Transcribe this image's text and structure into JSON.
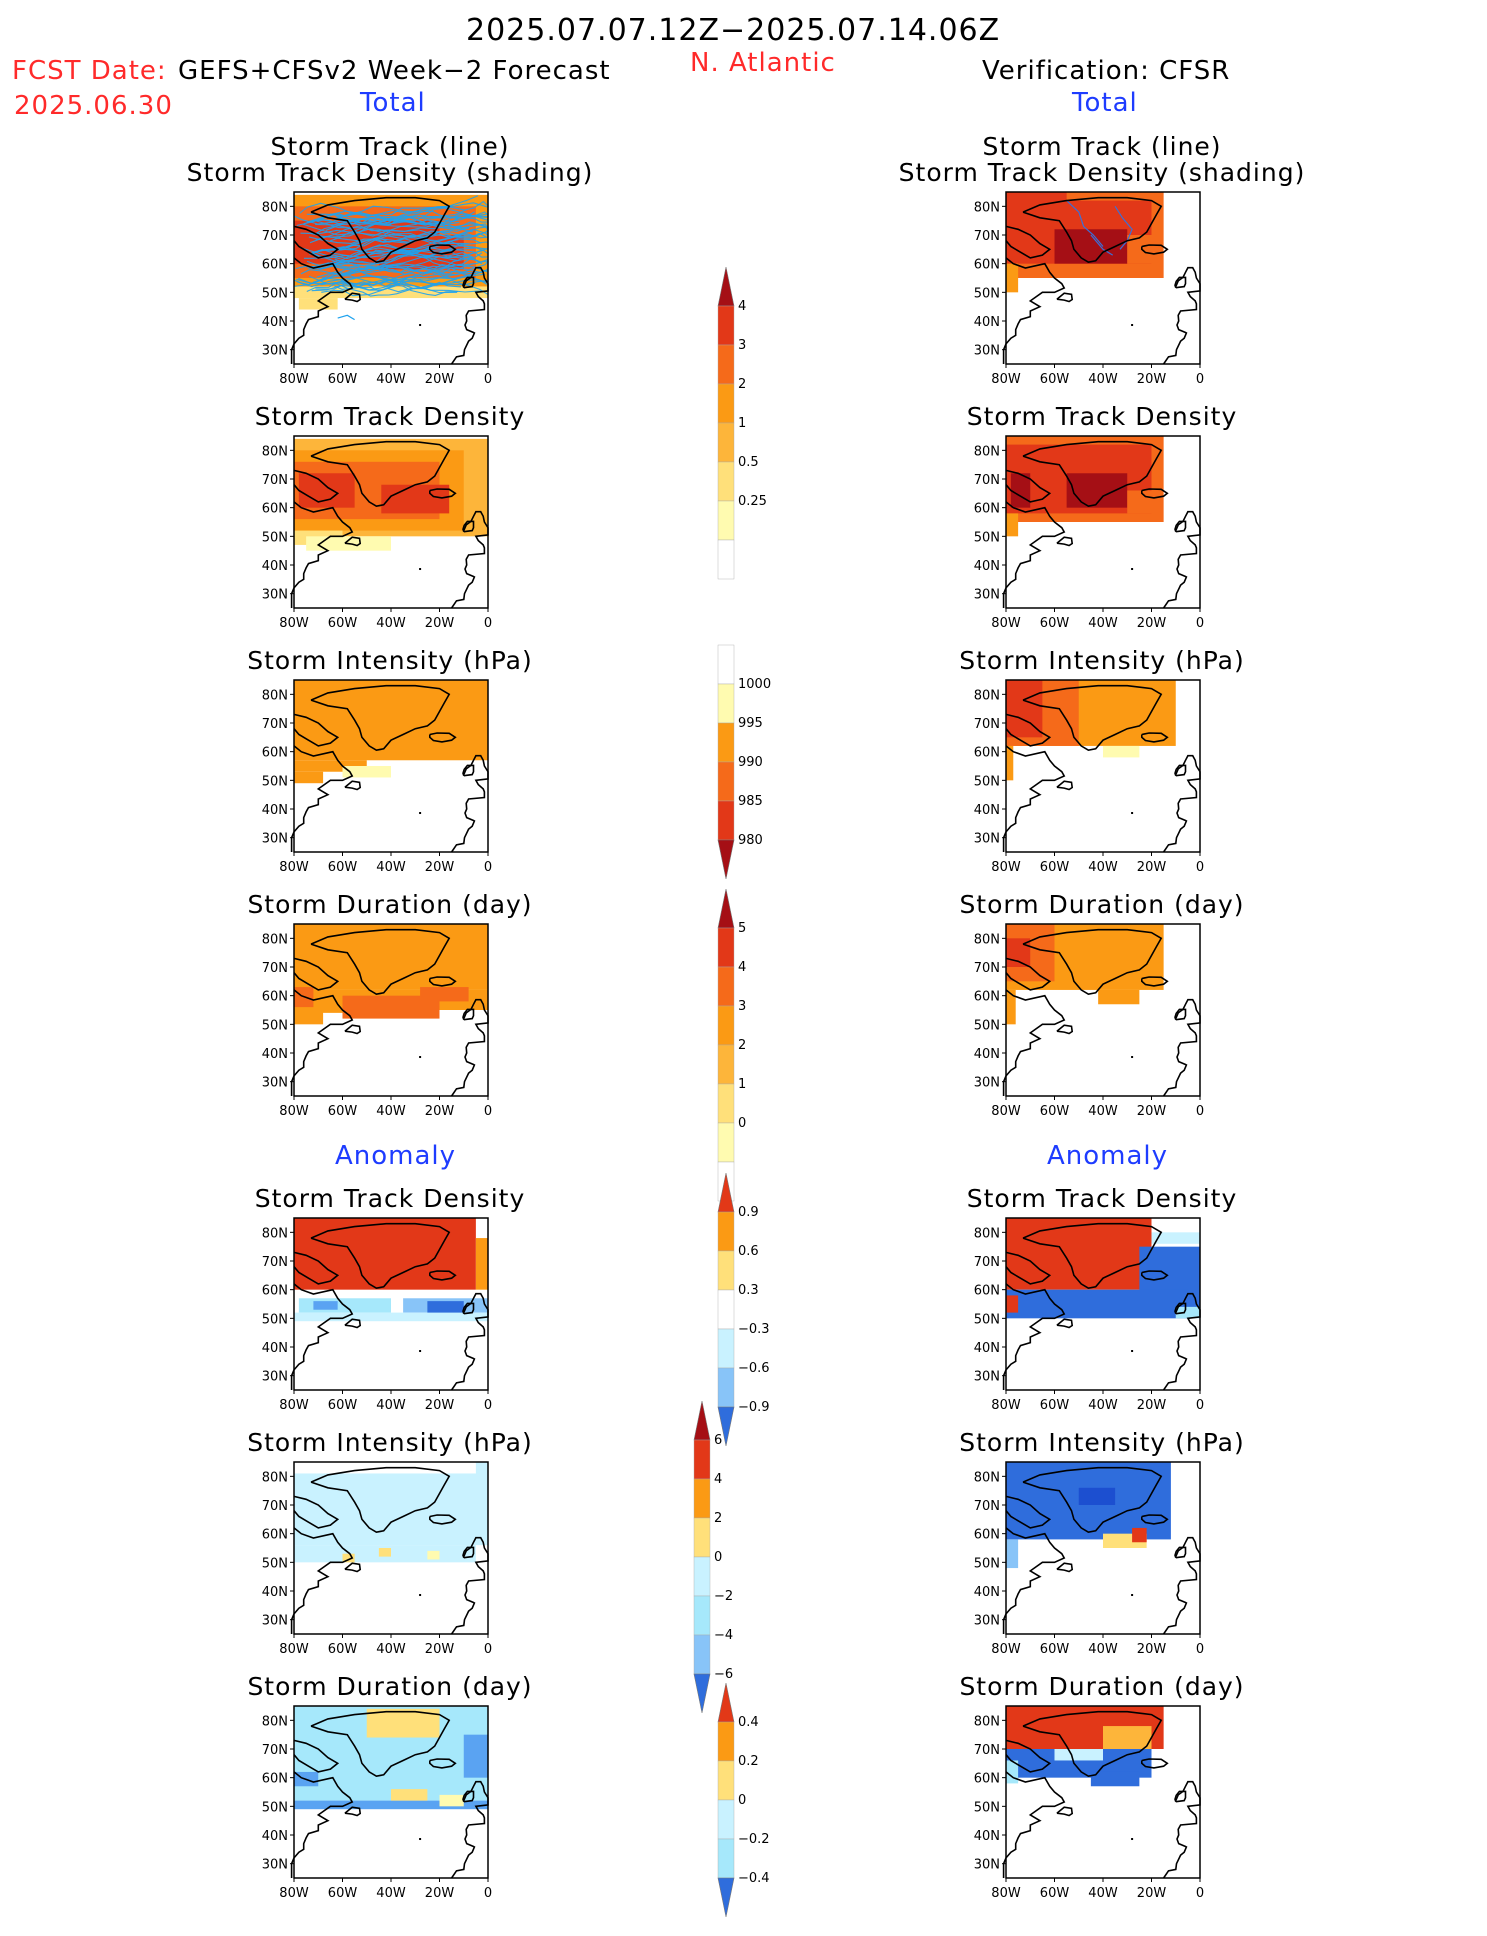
{
  "header": {
    "title": "2025.07.07.12Z−2025.07.14.06Z",
    "fcst_label": "FCST Date:",
    "fcst_model": "GEFS+CFSv2 Week−2 Forecast",
    "fcst_date": "2025.06.30",
    "region": "N. Atlantic",
    "verification": "Verification: CFSR",
    "left_total": "Total",
    "right_total": "Total",
    "left_anomaly": "Anomaly",
    "right_anomaly": "Anomaly"
  },
  "panel_titles": {
    "track_line": "Storm Track (line)",
    "track_density_shading": "Storm Track Density (shading)",
    "track_density": "Storm Track Density",
    "intensity": "Storm Intensity (hPa)",
    "duration": "Storm Duration (day)"
  },
  "axis": {
    "lat_labels": [
      "80N",
      "70N",
      "60N",
      "50N",
      "40N",
      "30N"
    ],
    "lon_labels": [
      "80W",
      "60W",
      "40W",
      "20W",
      "0"
    ]
  },
  "colorbars": {
    "total_density": [
      "4",
      "3",
      "2",
      "1",
      "0.5",
      "0.25"
    ],
    "total_intensity": [
      "1000",
      "995",
      "990",
      "985",
      "980"
    ],
    "total_duration": [
      "5",
      "4",
      "3",
      "2",
      "1",
      "0"
    ],
    "anom_density": [
      "0.9",
      "0.6",
      "0.3",
      "−0.3",
      "−0.6",
      "−0.9"
    ],
    "anom_intensity": [
      "6",
      "4",
      "2",
      "0",
      "−2",
      "−4",
      "−6"
    ],
    "anom_duration": [
      "0.4",
      "0.2",
      "0",
      "−0.2",
      "−0.4"
    ]
  },
  "colors": {
    "red_text": "#ff2a2a",
    "blue_text": "#1e3cff",
    "warm": [
      "#fffbb0",
      "#ffe07a",
      "#fdb53a",
      "#fb9a14",
      "#f56a1a",
      "#e23818",
      "#a50f15"
    ],
    "cool": [
      "#c9f2ff",
      "#a6e8fb",
      "#88c4f8",
      "#5aa3f2",
      "#2f6ddc",
      "#1c4fd0"
    ],
    "track_lines": "#1ea2ee"
  }
}
